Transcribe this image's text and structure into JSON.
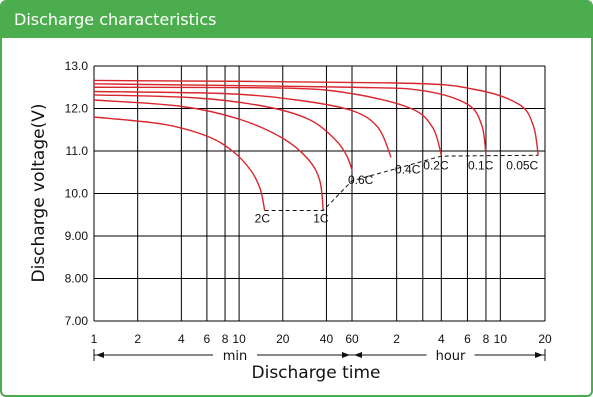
{
  "header": {
    "title": "Discharge characteristics"
  },
  "colors": {
    "frame": "#4bad4e",
    "curve": "#d9272e",
    "grid": "#000000"
  },
  "chart_data": {
    "type": "line",
    "title": "Discharge characteristics",
    "xlabel": "Discharge time",
    "ylabel": "Discharge voltage(V)",
    "x_scale": "log",
    "x_units": {
      "min": {
        "label": "min",
        "range": [
          1,
          60
        ]
      },
      "hour": {
        "label": "hour",
        "range": [
          1,
          20
        ]
      }
    },
    "x_ticks_min": [
      "1",
      "2",
      "4",
      "6",
      "8",
      "10",
      "20",
      "40",
      "60"
    ],
    "x_ticks_hour": [
      "2",
      "4",
      "6",
      "8",
      "10",
      "20"
    ],
    "y_ticks": [
      "13.0",
      "12.0",
      "11.0",
      "10.0",
      "9.00",
      "8.00",
      "7.00"
    ],
    "ylim": [
      7.0,
      13.0
    ],
    "grid": true,
    "series": [
      {
        "name": "2C",
        "points": [
          [
            1,
            11.8
          ],
          [
            3,
            11.63
          ],
          [
            6,
            11.35
          ],
          [
            9,
            11.0
          ],
          [
            12,
            10.55
          ],
          [
            14,
            10.1
          ],
          [
            15,
            9.6
          ]
        ]
      },
      {
        "name": "1C",
        "points": [
          [
            1,
            12.2
          ],
          [
            4,
            12.05
          ],
          [
            10,
            11.75
          ],
          [
            20,
            11.3
          ],
          [
            30,
            10.8
          ],
          [
            36,
            10.3
          ],
          [
            38,
            9.6
          ]
        ]
      },
      {
        "name": "0.6C",
        "points": [
          [
            1,
            12.32
          ],
          [
            5,
            12.25
          ],
          [
            15,
            12.05
          ],
          [
            30,
            11.75
          ],
          [
            45,
            11.3
          ],
          [
            55,
            10.9
          ],
          [
            60,
            10.55
          ]
        ]
      },
      {
        "name": "0.4C",
        "points": [
          [
            1,
            12.4
          ],
          [
            8,
            12.35
          ],
          [
            25,
            12.2
          ],
          [
            60,
            11.95
          ],
          [
            90,
            11.55
          ],
          [
            110,
            10.85
          ]
        ]
      },
      {
        "name": "0.2C",
        "points": [
          [
            1,
            12.5
          ],
          [
            20,
            12.48
          ],
          [
            60,
            12.35
          ],
          [
            150,
            12.0
          ],
          [
            210,
            11.55
          ],
          [
            240,
            10.9
          ]
        ]
      },
      {
        "name": "0.1C",
        "points": [
          [
            1,
            12.58
          ],
          [
            60,
            12.5
          ],
          [
            180,
            12.42
          ],
          [
            360,
            12.1
          ],
          [
            450,
            11.6
          ],
          [
            480,
            10.9
          ]
        ]
      },
      {
        "name": "0.05C",
        "points": [
          [
            1,
            12.66
          ],
          [
            120,
            12.6
          ],
          [
            400,
            12.45
          ],
          [
            800,
            12.1
          ],
          [
            1000,
            11.6
          ],
          [
            1080,
            10.9
          ]
        ]
      }
    ],
    "cutoff_line": {
      "style": "dashed",
      "points": [
        [
          15,
          9.6
        ],
        [
          38,
          9.6
        ],
        [
          60,
          10.3
        ],
        [
          110,
          10.55
        ],
        [
          240,
          10.88
        ],
        [
          1080,
          10.9
        ]
      ]
    }
  }
}
